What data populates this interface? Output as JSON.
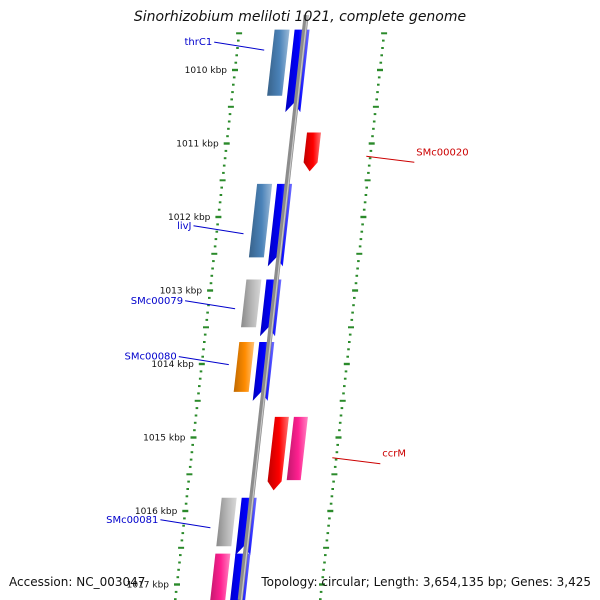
{
  "title": "Sinorhizobium meliloti 1021, complete genome",
  "footer": {
    "accession": "Accession: NC_003047",
    "summary": "Topology: circular; Length: 3,654,135 bp; Genes: 3,425"
  },
  "colors": {
    "backbone": "#8c8c8c",
    "tick": "#2a8a2a",
    "label_blue": "#0000cc",
    "label_red": "#cc0000",
    "cds_blue": "#0000ff",
    "steel": "#4a82b8",
    "grey": "#b8b8b8",
    "orange": "#ff8c00",
    "red": "#ff0000",
    "pink": "#ff2090"
  },
  "ruler": {
    "unit": "kbp",
    "ticks": [
      {
        "label": "1010 kbp",
        "kbp": 1010
      },
      {
        "label": "1011 kbp",
        "kbp": 1011
      },
      {
        "label": "1012 kbp",
        "kbp": 1012
      },
      {
        "label": "1013 kbp",
        "kbp": 1013
      },
      {
        "label": "1014 kbp",
        "kbp": 1014
      },
      {
        "label": "1015 kbp",
        "kbp": 1015
      },
      {
        "label": "1016 kbp",
        "kbp": 1016
      },
      {
        "label": "1017 kbp",
        "kbp": 1017
      }
    ]
  },
  "features": [
    {
      "strand": "forward",
      "track": 1,
      "color": "steel",
      "start": 1009.45,
      "end": 1010.35
    },
    {
      "strand": "forward",
      "track": 2,
      "color": "cds_blue",
      "start": 1009.45,
      "end": 1010.45,
      "arrow": true
    },
    {
      "strand": "forward",
      "track": 1,
      "color": "steel",
      "start": 1011.55,
      "end": 1012.55
    },
    {
      "strand": "forward",
      "track": 2,
      "color": "cds_blue",
      "start": 1011.55,
      "end": 1012.55,
      "arrow": true
    },
    {
      "strand": "forward",
      "track": 1,
      "color": "grey",
      "start": 1012.85,
      "end": 1013.5
    },
    {
      "strand": "forward",
      "track": 2,
      "color": "cds_blue",
      "start": 1012.85,
      "end": 1013.5,
      "arrow": true
    },
    {
      "strand": "forward",
      "track": 1,
      "color": "orange",
      "start": 1013.7,
      "end": 1014.38
    },
    {
      "strand": "forward",
      "track": 2,
      "color": "cds_blue",
      "start": 1013.7,
      "end": 1014.38,
      "arrow": true
    },
    {
      "strand": "forward",
      "track": 1,
      "color": "grey",
      "start": 1015.82,
      "end": 1016.48
    },
    {
      "strand": "forward",
      "track": 2,
      "color": "cds_blue",
      "start": 1015.82,
      "end": 1016.48,
      "arrow": true
    },
    {
      "strand": "forward",
      "track": 1,
      "color": "pink",
      "start": 1016.58,
      "end": 1017.35
    },
    {
      "strand": "forward",
      "track": 2,
      "color": "cds_blue",
      "start": 1016.58,
      "end": 1017.35,
      "arrow": true
    },
    {
      "strand": "reverse",
      "track": 1,
      "color": "red",
      "start": 1010.85,
      "end": 1011.38,
      "arrow": true
    },
    {
      "strand": "reverse",
      "track": 1,
      "color": "red",
      "start": 1014.72,
      "end": 1015.72,
      "arrow": true
    },
    {
      "strand": "reverse",
      "track": 2,
      "color": "pink",
      "start": 1014.72,
      "end": 1015.58
    }
  ],
  "gene_labels": [
    {
      "text": "thrC1",
      "strand": "forward",
      "kbp": 1009.62,
      "color": "label_blue"
    },
    {
      "text": "livJ",
      "strand": "forward",
      "kbp": 1012.12,
      "color": "label_blue"
    },
    {
      "text": "SMc00079",
      "strand": "forward",
      "kbp": 1013.14,
      "color": "label_blue"
    },
    {
      "text": "SMc00080",
      "strand": "forward",
      "kbp": 1013.9,
      "color": "label_blue"
    },
    {
      "text": "SMc00081",
      "strand": "forward",
      "kbp": 1016.12,
      "color": "label_blue"
    },
    {
      "text": "SMc00020",
      "strand": "reverse",
      "kbp": 1011.12,
      "color": "label_red"
    },
    {
      "text": "ccrM",
      "strand": "reverse",
      "kbp": 1015.22,
      "color": "label_red"
    }
  ]
}
